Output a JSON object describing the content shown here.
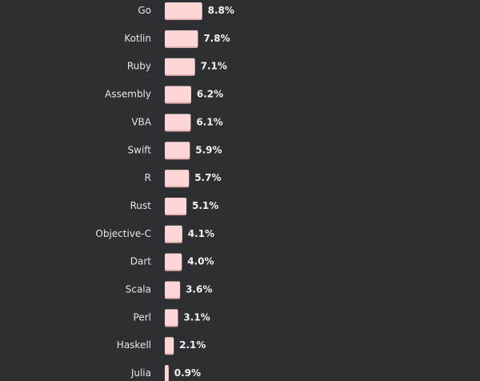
{
  "chart_data": {
    "type": "bar",
    "orientation": "horizontal",
    "categories": [
      "Go",
      "Kotlin",
      "Ruby",
      "Assembly",
      "VBA",
      "Swift",
      "R",
      "Rust",
      "Objective-C",
      "Dart",
      "Scala",
      "Perl",
      "Haskell",
      "Julia"
    ],
    "values": [
      8.8,
      7.8,
      7.1,
      6.2,
      6.1,
      5.9,
      5.7,
      5.1,
      4.1,
      4.0,
      3.6,
      3.1,
      2.1,
      0.9
    ],
    "value_labels": [
      "8.8%",
      "7.8%",
      "7.1%",
      "6.2%",
      "6.1%",
      "5.9%",
      "5.7%",
      "5.1%",
      "4.1%",
      "4.0%",
      "3.6%",
      "3.1%",
      "2.1%",
      "0.9%"
    ],
    "unit": "%",
    "title": "",
    "xlabel": "",
    "ylabel": "",
    "grid": false,
    "legend": "none",
    "colors": {
      "background": "#2d2f33",
      "bar": "#ffd6d6",
      "bar_shadow": "#e8b4b4",
      "category_text": "#e6e6e6",
      "value_text": "#f2f2f2"
    }
  }
}
